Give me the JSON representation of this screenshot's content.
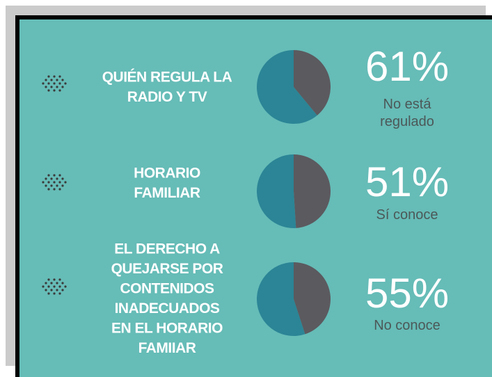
{
  "chart_data": [
    {
      "type": "pie",
      "title": [
        "QUIÉN REGULA LA",
        "RADIO Y TV"
      ],
      "categories": [
        "No está regulado",
        null
      ],
      "values": [
        61,
        39
      ],
      "value_labels": [
        "61%",
        null
      ],
      "colors": [
        "#2b8596",
        "#5b5a5f"
      ]
    },
    {
      "type": "pie",
      "title": [
        "HORARIO",
        "FAMILIAR"
      ],
      "categories": [
        "Sí conoce",
        null
      ],
      "values": [
        51,
        49
      ],
      "value_labels": [
        "51%",
        null
      ],
      "colors": [
        "#2b8596",
        "#5b5a5f"
      ]
    },
    {
      "type": "pie",
      "title": [
        "EL DERECHO A",
        "QUEJARSE POR",
        "CONTENIDOS",
        "INADECUADOS",
        "EN EL HORARIO",
        "FAMIIAR"
      ],
      "categories": [
        "No conoce",
        null
      ],
      "values": [
        55,
        45
      ],
      "value_labels": [
        "55%",
        null
      ],
      "colors": [
        "#2b8596",
        "#5b5a5f"
      ]
    }
  ]
}
